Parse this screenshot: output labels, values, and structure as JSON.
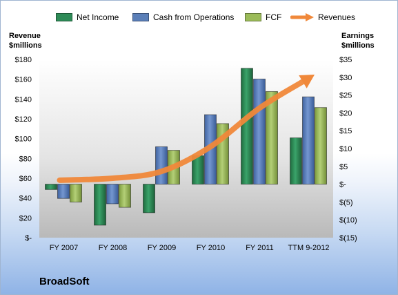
{
  "company": "BroadSoft",
  "colors": {
    "net_income": "#2e8b57",
    "cash_ops": "#5b7fb8",
    "fcf": "#9bbb59",
    "revenues": "#f0883a"
  },
  "legend": [
    {
      "label": "Net Income",
      "type": "swatch",
      "color": "#2e8b57"
    },
    {
      "label": "Cash from Operations",
      "type": "swatch",
      "color": "#5b7fb8"
    },
    {
      "label": "FCF",
      "type": "swatch",
      "color": "#9bbb59"
    },
    {
      "label": "Revenues",
      "type": "arrow",
      "color": "#f0883a"
    }
  ],
  "chart_data": {
    "type": "bar",
    "categories": [
      "FY 2007",
      "FY 2008",
      "FY 2009",
      "FY 2010",
      "FY 2011",
      "TTM 9-2012"
    ],
    "left_axis": {
      "title_line1": "Revenue",
      "title_line2": "$millions",
      "ylim": [
        0,
        180
      ],
      "ticks": [
        0,
        20,
        40,
        60,
        80,
        100,
        120,
        140,
        160,
        180
      ],
      "tick_labels": [
        "$-",
        "$20",
        "$40",
        "$60",
        "$80",
        "$100",
        "$120",
        "$140",
        "$160",
        "$180"
      ]
    },
    "right_axis": {
      "title_line1": "Earnings",
      "title_line2": "$millions",
      "ylim": [
        -15,
        35
      ],
      "ticks": [
        -15,
        -10,
        -5,
        0,
        5,
        10,
        15,
        20,
        25,
        30,
        35
      ],
      "tick_labels": [
        "$(15)",
        "$(10)",
        "$(5)",
        "$-",
        "$5",
        "$10",
        "$15",
        "$20",
        "$25",
        "$30",
        "$35"
      ]
    },
    "series": [
      {
        "name": "Net Income",
        "axis": "right",
        "values": [
          -1.5,
          -11.5,
          -8,
          8,
          32.5,
          13
        ]
      },
      {
        "name": "Cash from Operations",
        "axis": "right",
        "values": [
          -4,
          -5.5,
          10.5,
          19.5,
          29.5,
          24.5
        ]
      },
      {
        "name": "FCF",
        "axis": "right",
        "values": [
          -5,
          -6.5,
          9.5,
          17,
          26,
          21.5
        ]
      },
      {
        "name": "Revenues",
        "axis": "left",
        "type": "line",
        "values": [
          58,
          60,
          67,
          92,
          131,
          161
        ]
      }
    ],
    "grid": false,
    "legend_position": "top"
  }
}
